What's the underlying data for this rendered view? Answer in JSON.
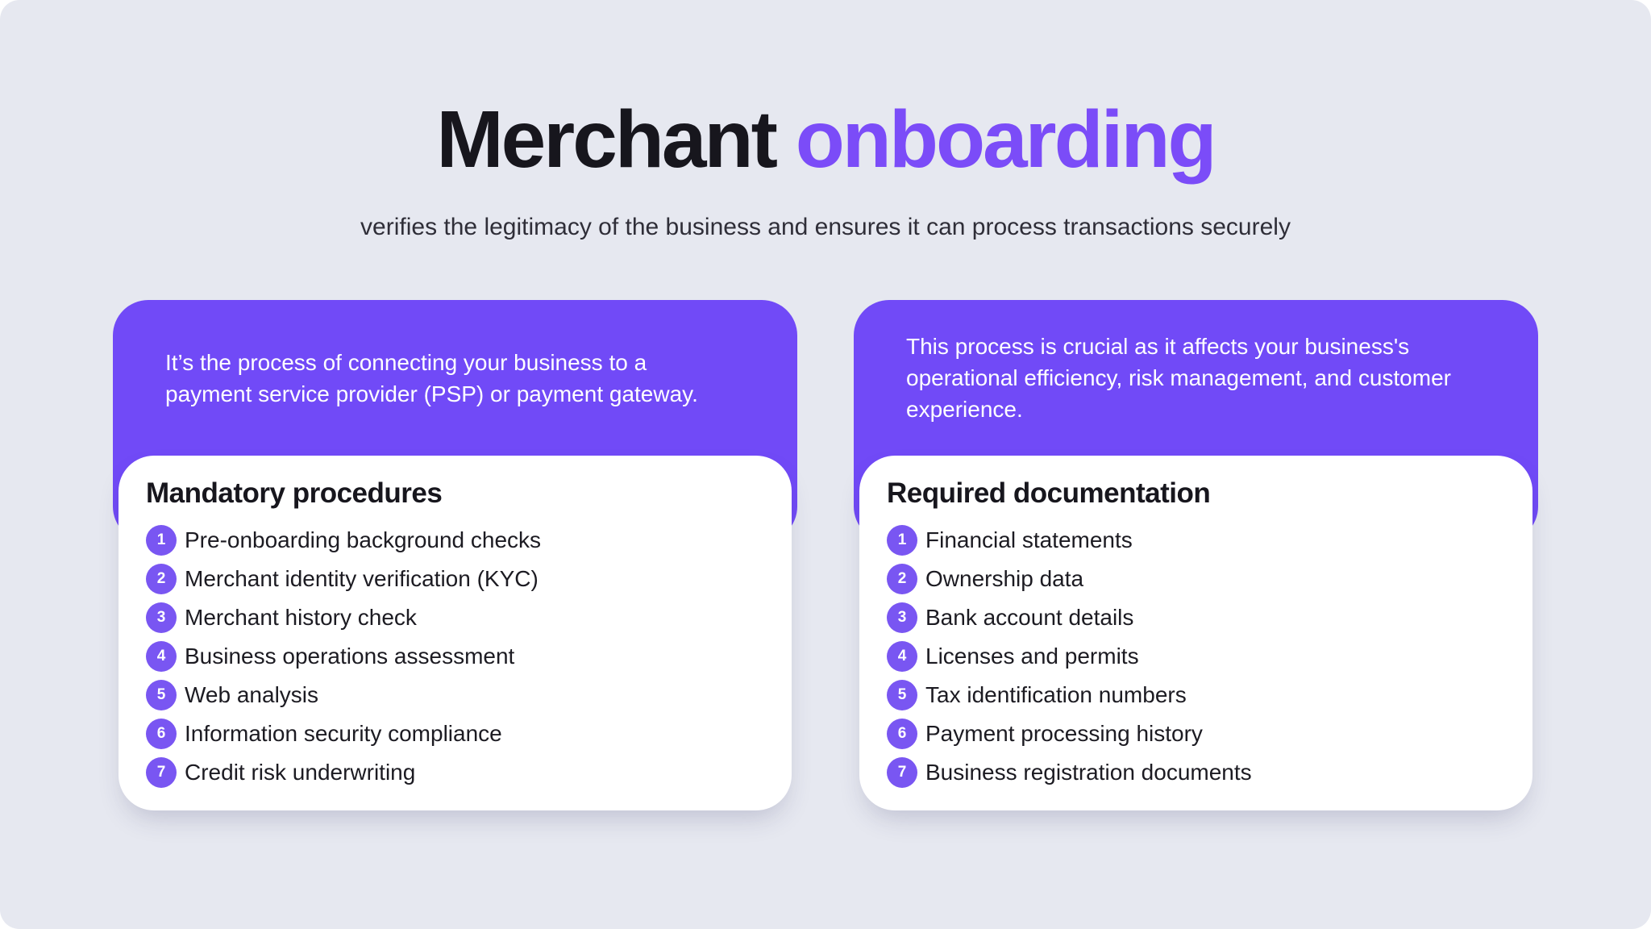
{
  "page": {
    "title_dark": "Merchant",
    "title_accent": "onboarding",
    "subtitle": "verifies the legitimacy of the business and ensures it can process transactions securely"
  },
  "colors": {
    "background": "#e6e8f0",
    "card_purple": "#714af7",
    "badge_purple": "#7956f2",
    "title_accent": "#7b4cf8",
    "title_dark": "#17161d",
    "card_body_bg": "#ffffff"
  },
  "cards": [
    {
      "header_lines": [
        "It’s the process of connecting your business to a",
        "payment service provider (PSP) or payment gateway."
      ],
      "heading": "Mandatory procedures",
      "items": [
        {
          "n": "1",
          "label": "Pre-onboarding background checks"
        },
        {
          "n": "2",
          "label": "Merchant identity verification (KYC)"
        },
        {
          "n": "3",
          "label": "Merchant history check"
        },
        {
          "n": "4",
          "label": "Business operations assessment"
        },
        {
          "n": "5",
          "label": "Web analysis"
        },
        {
          "n": "6",
          "label": "Information security compliance"
        },
        {
          "n": "7",
          "label": "Credit risk underwriting"
        }
      ]
    },
    {
      "header_lines": [
        "This process is crucial as it affects your business's",
        "operational efficiency, risk management, and customer",
        "experience."
      ],
      "heading": "Required documentation",
      "items": [
        {
          "n": "1",
          "label": "Financial statements"
        },
        {
          "n": "2",
          "label": "Ownership data"
        },
        {
          "n": "3",
          "label": "Bank account details"
        },
        {
          "n": "4",
          "label": "Licenses and permits"
        },
        {
          "n": "5",
          "label": "Tax identification numbers"
        },
        {
          "n": "6",
          "label": "Payment processing history"
        },
        {
          "n": "7",
          "label": "Business registration documents"
        }
      ]
    }
  ]
}
